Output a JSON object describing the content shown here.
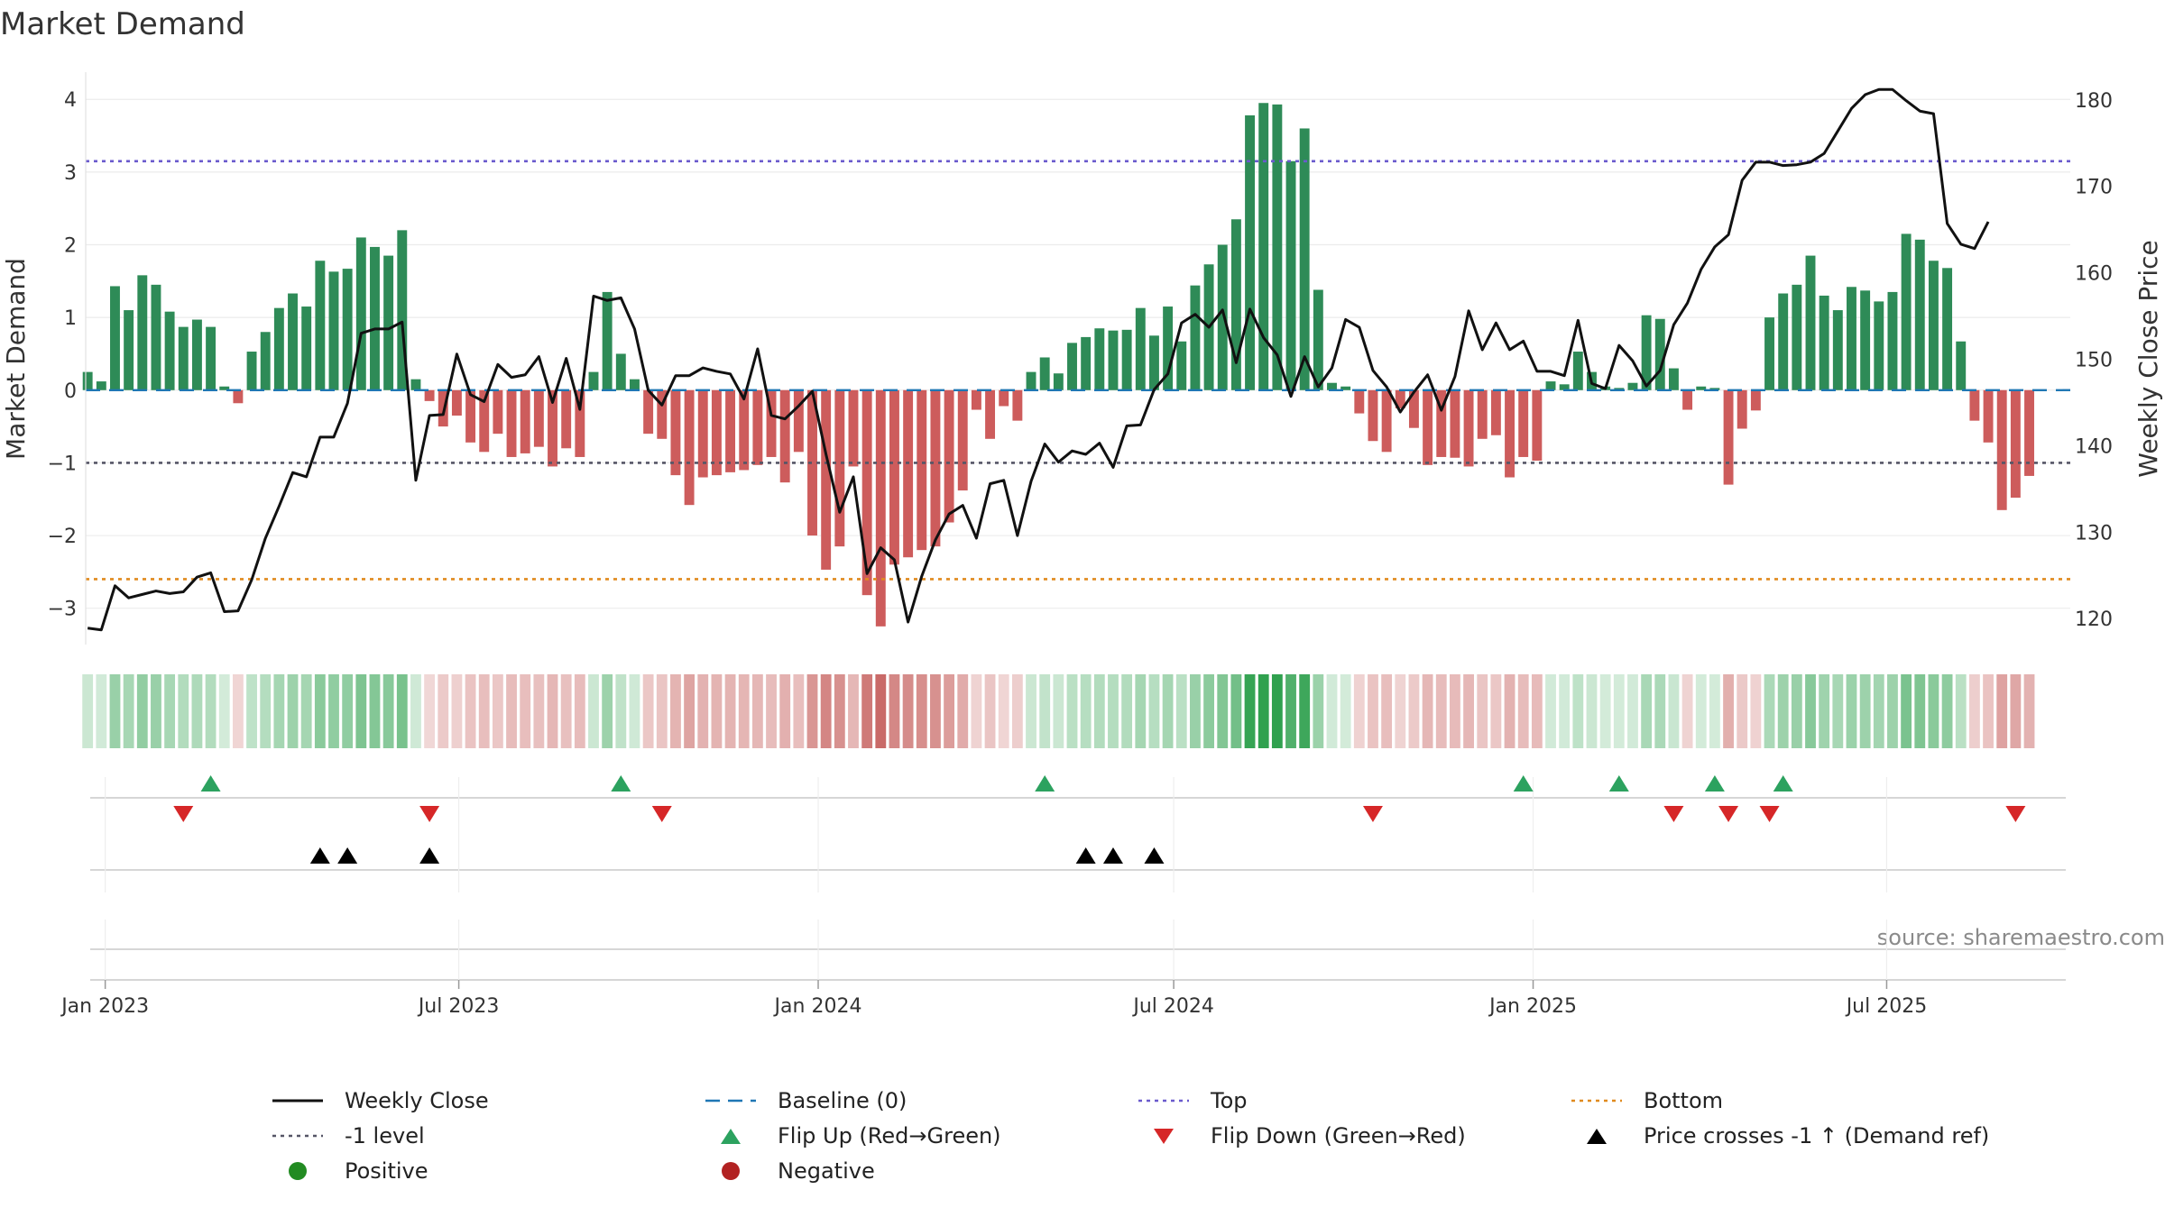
{
  "chart_data": {
    "type": "bar",
    "title": "Market Demand",
    "ylabel_left": "Market Demand",
    "ylabel_right": "Weekly Close Price",
    "source": "source: sharemaestro.com",
    "ylim_left": [
      -3.5,
      4.35
    ],
    "ylim_right": [
      117,
      183
    ],
    "yticks_left": [
      "4",
      "3",
      "2",
      "1",
      "0",
      "−1",
      "−2",
      "−3"
    ],
    "yticks_left_values": [
      4,
      3,
      2,
      1,
      0,
      -1,
      -2,
      -3
    ],
    "yticks_right": [
      "180",
      "170",
      "160",
      "150",
      "140",
      "130",
      "120"
    ],
    "yticks_right_values": [
      180,
      170,
      160,
      150,
      140,
      130,
      120
    ],
    "x_range": [
      "2022-12-22",
      "2025-10-03"
    ],
    "x_ticks": [
      {
        "label": "Jan 2023",
        "date": "2023-01-01"
      },
      {
        "label": "Jul 2023",
        "date": "2023-07-01"
      },
      {
        "label": "Jan 2024",
        "date": "2024-01-01"
      },
      {
        "label": "Jul 2024",
        "date": "2024-07-01"
      },
      {
        "label": "Jan 2025",
        "date": "2025-01-01"
      },
      {
        "label": "Jul 2025",
        "date": "2025-07-01"
      }
    ],
    "start_week": "2022-12-23",
    "levels": {
      "top": 3.15,
      "bottom": -2.6,
      "minus_one": -1,
      "baseline": 0
    },
    "demand": [
      0.25,
      0.12,
      1.43,
      1.1,
      1.58,
      1.45,
      1.08,
      0.87,
      0.97,
      0.87,
      0.05,
      -0.18,
      0.53,
      0.8,
      1.13,
      1.33,
      1.15,
      1.78,
      1.63,
      1.67,
      2.1,
      1.97,
      1.85,
      2.2,
      0.15,
      -0.15,
      -0.5,
      -0.35,
      -0.72,
      -0.85,
      -0.6,
      -0.92,
      -0.87,
      -0.78,
      -1.05,
      -0.8,
      -0.92,
      0.25,
      1.35,
      0.5,
      0.15,
      -0.6,
      -0.67,
      -1.17,
      -1.58,
      -1.2,
      -1.17,
      -1.13,
      -1.1,
      -1.03,
      -0.92,
      -1.27,
      -0.85,
      -2.0,
      -2.47,
      -2.15,
      -1.05,
      -2.82,
      -3.25,
      -2.4,
      -2.3,
      -2.2,
      -2.15,
      -1.82,
      -1.38,
      -0.27,
      -0.67,
      -0.22,
      -0.42,
      0.25,
      0.45,
      0.23,
      0.65,
      0.73,
      0.85,
      0.82,
      0.83,
      1.13,
      0.75,
      1.15,
      0.67,
      1.44,
      1.73,
      2.0,
      2.35,
      3.78,
      3.95,
      3.93,
      3.15,
      3.6,
      1.38,
      0.1,
      0.05,
      -0.32,
      -0.7,
      -0.85,
      -0.25,
      -0.52,
      -1.03,
      -0.92,
      -0.93,
      -1.05,
      -0.67,
      -0.62,
      -1.2,
      -0.92,
      -0.97,
      0.12,
      0.08,
      0.53,
      0.25,
      0.05,
      0.03,
      0.1,
      1.03,
      0.98,
      0.3,
      -0.27,
      0.05,
      0.03,
      -1.3,
      -0.53,
      -0.28,
      1.0,
      1.33,
      1.45,
      1.85,
      1.3,
      1.1,
      1.42,
      1.37,
      1.22,
      1.35,
      2.15,
      2.07,
      1.78,
      1.68,
      0.67,
      -0.42,
      -0.72,
      -1.65,
      -1.48,
      -1.18
    ],
    "price": [
      118.9,
      118.7,
      123.8,
      122.4,
      122.8,
      123.2,
      122.9,
      123.1,
      124.8,
      125.3,
      120.8,
      120.9,
      124.5,
      129.3,
      133.0,
      136.9,
      136.4,
      141.0,
      141.0,
      144.9,
      153.0,
      153.5,
      153.5,
      154.3,
      136.0,
      143.5,
      143.6,
      150.6,
      145.9,
      145.1,
      149.4,
      147.9,
      148.2,
      150.3,
      145.0,
      150.1,
      144.2,
      157.3,
      156.8,
      157.1,
      153.5,
      146.4,
      144.7,
      148.1,
      148.1,
      149.0,
      148.6,
      148.3,
      145.4,
      151.2,
      143.5,
      143.1,
      144.6,
      146.3,
      139.0,
      132.3,
      136.4,
      125.2,
      128.2,
      126.8,
      119.6,
      124.9,
      129.1,
      132.1,
      133.1,
      129.3,
      135.6,
      136.0,
      129.6,
      135.9,
      140.2,
      138.1,
      139.4,
      139.0,
      140.3,
      137.5,
      142.3,
      142.4,
      146.5,
      148.3,
      154.2,
      155.2,
      153.7,
      155.7,
      149.6,
      155.8,
      152.5,
      150.5,
      145.7,
      150.3,
      146.8,
      149.0,
      154.6,
      153.7,
      148.7,
      146.8,
      143.9,
      146.2,
      148.2,
      144.1,
      148.0,
      155.6,
      151.1,
      154.2,
      151.1,
      152.1,
      148.6,
      148.6,
      148.1,
      154.5,
      147.2,
      146.6,
      151.6,
      149.8,
      146.9,
      148.7,
      154.0,
      156.5,
      160.4,
      163.0,
      164.4,
      170.7,
      172.8,
      172.8,
      172.4,
      172.5,
      172.8,
      173.8,
      176.4,
      179.0,
      180.6,
      181.2,
      181.2,
      179.9,
      178.7,
      178.4,
      165.7,
      163.3,
      162.8,
      165.9
    ],
    "flip_up": [
      "2023-02-24",
      "2023-09-22",
      "2024-04-26",
      "2024-12-27",
      "2025-02-14",
      "2025-04-04",
      "2025-05-09"
    ],
    "flip_down": [
      "2023-02-10",
      "2023-06-16",
      "2023-10-13",
      "2024-10-11",
      "2025-03-14",
      "2025-04-11",
      "2025-05-02",
      "2025-09-05"
    ],
    "price_crosses": [
      "2023-04-21",
      "2023-05-05",
      "2023-06-16",
      "2024-05-17",
      "2024-05-31",
      "2024-06-21"
    ],
    "colors": {
      "positive": "#2e8b57",
      "negative": "#cd5c5c",
      "price_line": "#111111",
      "baseline": "#1f77b4",
      "top": "#6a5acd",
      "bottom": "#e08a1e",
      "minus_one": "#555566",
      "flip_up": "#2ca25f",
      "flip_down": "#d62728",
      "cross": "#000000"
    },
    "legend": [
      {
        "key": "weekly-close",
        "label": "Weekly Close",
        "marker": "line",
        "color": "#111111"
      },
      {
        "key": "baseline",
        "label": "Baseline (0)",
        "marker": "dashed",
        "color": "#1f77b4"
      },
      {
        "key": "top",
        "label": "Top",
        "marker": "dotted",
        "color": "#6a5acd"
      },
      {
        "key": "bottom",
        "label": "Bottom",
        "marker": "dotted",
        "color": "#e08a1e"
      },
      {
        "key": "minus-one",
        "label": "-1 level",
        "marker": "dotted",
        "color": "#555566"
      },
      {
        "key": "flip-up",
        "label": "Flip Up (Red→Green)",
        "marker": "triangle-up",
        "color": "#2ca25f"
      },
      {
        "key": "flip-down",
        "label": "Flip Down (Green→Red)",
        "marker": "triangle-down",
        "color": "#d62728"
      },
      {
        "key": "price-cross",
        "label": "Price crosses -1 ↑ (Demand ref)",
        "marker": "triangle-up",
        "color": "#000000"
      },
      {
        "key": "positive",
        "label": "Positive",
        "marker": "circle",
        "color": "#228b22"
      },
      {
        "key": "negative",
        "label": "Negative",
        "marker": "circle",
        "color": "#b22222"
      }
    ]
  }
}
